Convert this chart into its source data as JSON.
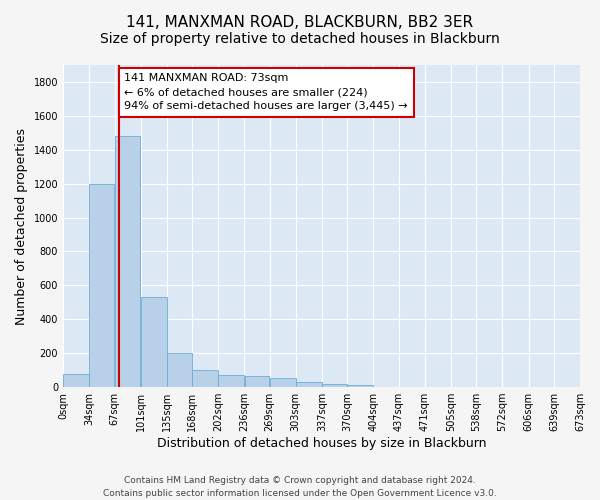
{
  "title1": "141, MANXMAN ROAD, BLACKBURN, BB2 3ER",
  "title2": "Size of property relative to detached houses in Blackburn",
  "xlabel": "Distribution of detached houses by size in Blackburn",
  "ylabel": "Number of detached properties",
  "bar_edges": [
    0,
    34,
    67,
    101,
    135,
    168,
    202,
    236,
    269,
    303,
    337,
    370,
    404,
    437,
    471,
    505,
    538,
    572,
    606,
    639,
    673
  ],
  "bar_heights": [
    80,
    1200,
    1480,
    530,
    200,
    100,
    70,
    65,
    55,
    30,
    18,
    15,
    0,
    0,
    0,
    0,
    0,
    0,
    0,
    0
  ],
  "bar_color": "#b8d0e8",
  "bar_edge_color": "#6aaed6",
  "vline_x": 73,
  "vline_color": "#cc0000",
  "annotation_text": "141 MANXMAN ROAD: 73sqm\n← 6% of detached houses are smaller (224)\n94% of semi-detached houses are larger (3,445) →",
  "annotation_box_color": "#ffffff",
  "annotation_box_edge": "#cc0000",
  "ylim": [
    0,
    1900
  ],
  "yticks": [
    0,
    200,
    400,
    600,
    800,
    1000,
    1200,
    1400,
    1600,
    1800
  ],
  "xtick_labels": [
    "0sqm",
    "34sqm",
    "67sqm",
    "101sqm",
    "135sqm",
    "168sqm",
    "202sqm",
    "236sqm",
    "269sqm",
    "303sqm",
    "337sqm",
    "370sqm",
    "404sqm",
    "437sqm",
    "471sqm",
    "505sqm",
    "538sqm",
    "572sqm",
    "606sqm",
    "639sqm",
    "673sqm"
  ],
  "fig_bg": "#f5f5f5",
  "axes_bg": "#dce9f5",
  "grid_color": "#ffffff",
  "footer1": "Contains HM Land Registry data © Crown copyright and database right 2024.",
  "footer2": "Contains public sector information licensed under the Open Government Licence v3.0.",
  "title_fontsize": 11,
  "subtitle_fontsize": 10,
  "axis_label_fontsize": 9,
  "tick_fontsize": 7,
  "footer_fontsize": 6.5,
  "ann_fontsize": 8
}
